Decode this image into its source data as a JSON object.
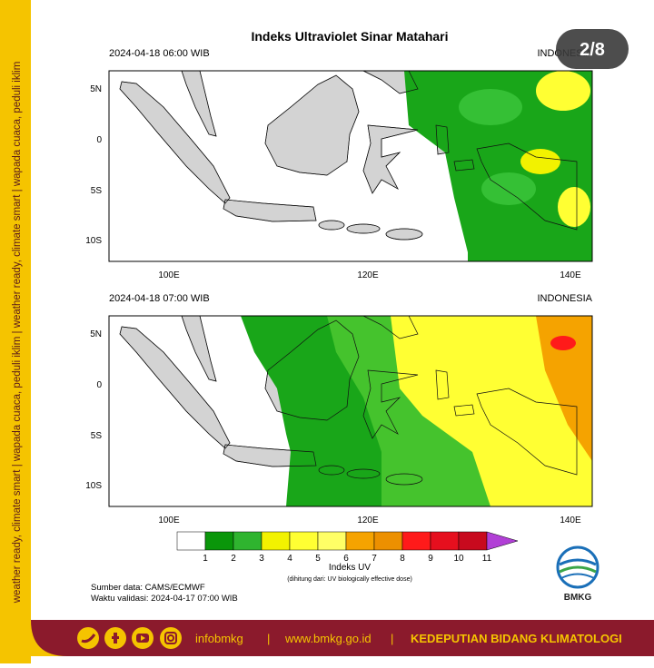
{
  "title": "Indeks Ultraviolet Sinar Matahari",
  "badge": "2/8",
  "side_text": "weather ready, climate smart | wapada cuaca, peduli iklim | weather ready, climate smart | wapada cuaca, peduli iklim",
  "panels": [
    {
      "time": "2024-04-18 06:00 WIB",
      "region": "INDONESIA",
      "lat_labels": [
        "5N",
        "0",
        "5S",
        "10S"
      ],
      "lon_labels": [
        "100E",
        "120E",
        "140E"
      ]
    },
    {
      "time": "2024-04-18 07:00 WIB",
      "region": "INDONESIA",
      "lat_labels": [
        "5N",
        "0",
        "5S",
        "10S"
      ],
      "lon_labels": [
        "100E",
        "120E",
        "140E"
      ]
    }
  ],
  "colorbar": {
    "ticks": [
      1,
      2,
      3,
      4,
      5,
      6,
      7,
      8,
      9,
      10,
      11
    ],
    "colors": [
      "#ffffff",
      "#0a960a",
      "#2fb42f",
      "#f2f200",
      "#ffff33",
      "#ffff66",
      "#f5a300",
      "#ec9000",
      "#ff1a1a",
      "#e60f1e",
      "#c80a1e",
      "#b13fd6"
    ],
    "label": "Indeks UV",
    "note": "(dihitung dari: UV biologically effective dose)"
  },
  "source": "Sumber data: CAMS/ECMWF",
  "validity": "Waktu validasi: 2024-04-17 07:00 WIB",
  "logo": "BMKG",
  "footer": {
    "social": "infobmkg",
    "website": "www.bmkg.go.id",
    "department": "KEDEPUTIAN BIDANG KLIMATOLOGI"
  }
}
